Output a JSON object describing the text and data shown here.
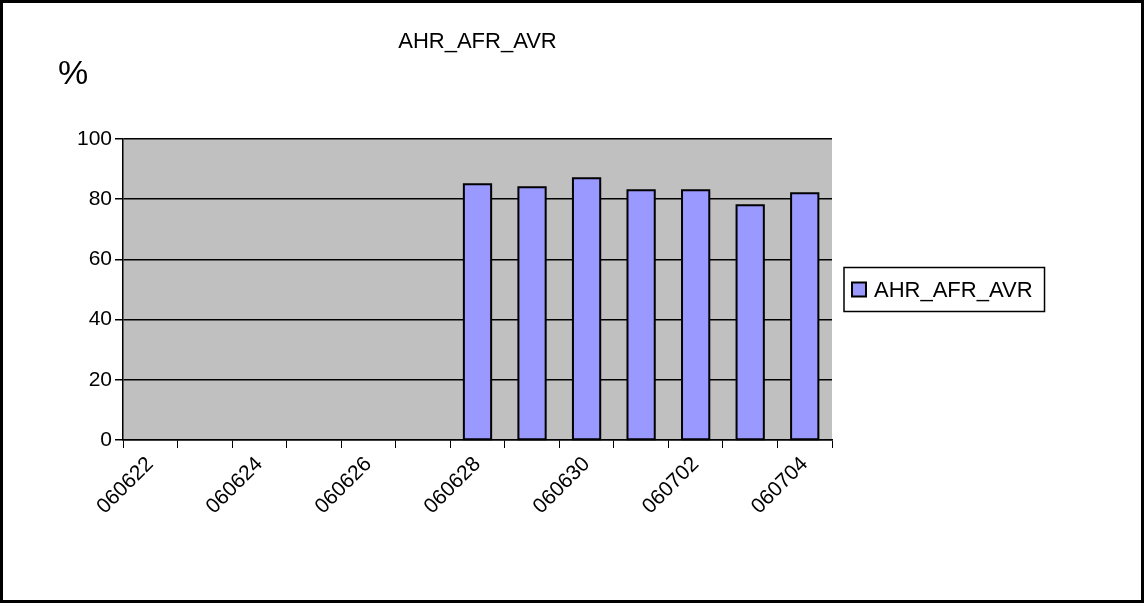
{
  "chart_data": {
    "type": "bar",
    "title": "AHR_AFR_AVR",
    "ylabel": "%",
    "categories": [
      "060622",
      null,
      "060624",
      null,
      "060626",
      null,
      "060628",
      null,
      "060630",
      null,
      "060702",
      null,
      "060704"
    ],
    "series": [
      {
        "name": "AHR_AFR_AVR",
        "color": "#9999ff",
        "values": [
          null,
          null,
          null,
          null,
          null,
          null,
          85,
          84,
          87,
          83,
          83,
          78,
          82
        ]
      }
    ],
    "ylim": [
      0,
      100
    ],
    "yticks": [
      0,
      20,
      40,
      60,
      80,
      100
    ],
    "grid": "y",
    "legend": "right"
  }
}
